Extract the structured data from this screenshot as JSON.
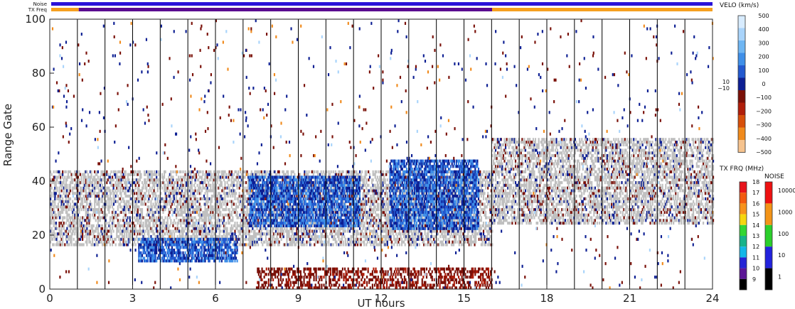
{
  "chart_data": {
    "type": "heatmap",
    "xlabel": "UT hours",
    "ylabel": "Range Gate",
    "xlim": [
      0,
      24
    ],
    "ylim": [
      0,
      100
    ],
    "x_ticks": [
      "0",
      "3",
      "6",
      "9",
      "12",
      "15",
      "18",
      "21",
      "24"
    ],
    "y_ticks": [
      "0",
      "20",
      "40",
      "60",
      "80",
      "100"
    ],
    "hour_gridlines": true,
    "top_bars": {
      "noise_label": "Noise",
      "txfreq_label": "TX Freq",
      "noise_color": "#2a12d9",
      "txfreq_segments": [
        {
          "start": 0,
          "end": 1,
          "color": "#f5a020"
        },
        {
          "start": 1,
          "end": 16,
          "color": "#5a0a90"
        },
        {
          "start": 16,
          "end": 24,
          "color": "#f5a020"
        }
      ]
    },
    "velocity_colorbar": {
      "title": "VELO (km/s)",
      "ticks": [
        "500",
        "400",
        "300",
        "200",
        "100",
        "0",
        "−100",
        "−200",
        "−300",
        "−400",
        "−500"
      ],
      "side_ticks": [
        "10",
        "−10"
      ],
      "colors": [
        "#d8ecff",
        "#a9d4fb",
        "#6fb6f3",
        "#3f8fe8",
        "#2359cf",
        "#0d1f93",
        "#7a1008",
        "#b01e0a",
        "#d74f0a",
        "#f08a1c",
        "#f6c38e"
      ],
      "ground_scatter_color": "#c0c0c0"
    },
    "txfreq_colorbar": {
      "title": "TX FRQ (MHz)",
      "ticks": [
        "18",
        "17",
        "16",
        "15",
        "14",
        "13",
        "12",
        "11",
        "10",
        "9"
      ],
      "colors": [
        "#e8141c",
        "#f25a10",
        "#f7921c",
        "#f6d60e",
        "#33d633",
        "#18b38a",
        "#13b7e8",
        "#2424d6",
        "#5c1696",
        "#000000"
      ]
    },
    "noise_colorbar": {
      "title": "NOISE",
      "ticks": [
        "10000",
        "1000",
        "100",
        "10",
        "1"
      ],
      "colors": [
        "#ee1111",
        "#f39418",
        "#2bcf2b",
        "#2222dd",
        "#000000"
      ]
    },
    "features": [
      {
        "name": "ground scatter band",
        "type": "ground",
        "t0": 0,
        "t1": 16,
        "g0": 16,
        "g1": 44
      },
      {
        "name": "ground scatter band late",
        "type": "ground",
        "t0": 16,
        "t1": 24,
        "g0": 24,
        "g1": 56
      },
      {
        "name": "towards-radar patch",
        "type": "positive",
        "t0": 7.2,
        "t1": 11.2,
        "g0": 23,
        "g1": 42
      },
      {
        "name": "low-range negative echoes",
        "type": "negative",
        "t0": 7.5,
        "t1": 16,
        "g0": 0,
        "g1": 8
      },
      {
        "name": "low-range patch 3-7h",
        "type": "positive",
        "t0": 3.2,
        "t1": 6.8,
        "g0": 10,
        "g1": 19
      },
      {
        "name": "ramp 12-16h",
        "type": "positive",
        "t0": 12.3,
        "t1": 15.5,
        "g0": 22,
        "g1": 48
      }
    ]
  }
}
